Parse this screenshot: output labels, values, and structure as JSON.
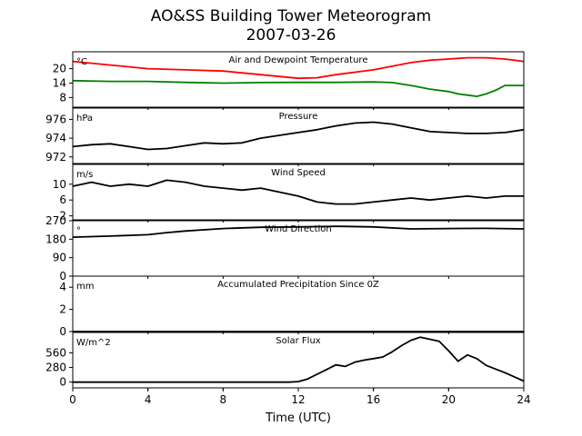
{
  "header": {
    "title": "AO&SS Building Tower Meteorogram",
    "date": "2007-03-26"
  },
  "chart_data": [
    {
      "type": "line",
      "title": "Air and Dewpoint Temperature",
      "unit": "°C",
      "ylim": [
        4,
        27
      ],
      "yticks": [
        "8",
        "14",
        "20"
      ],
      "ytick_values": [
        8,
        14,
        20
      ],
      "series": [
        {
          "color": "#ff0000",
          "x": [
            0,
            2,
            4,
            6,
            8,
            10,
            12,
            13,
            14,
            16,
            17,
            18,
            19,
            20,
            21,
            22,
            23,
            24
          ],
          "values": [
            23,
            21.5,
            20,
            19.5,
            19,
            17.5,
            16,
            16.2,
            17.5,
            19.5,
            21,
            22.5,
            23.5,
            24,
            24.5,
            24.5,
            24,
            23
          ]
        },
        {
          "color": "#008000",
          "x": [
            0,
            2,
            4,
            6,
            8,
            10,
            12,
            14,
            16,
            17,
            18,
            19,
            20,
            20.5,
            21,
            21.5,
            22,
            22.5,
            23,
            24
          ],
          "values": [
            15,
            14.7,
            14.7,
            14.3,
            14,
            14.2,
            14.3,
            14.3,
            14.5,
            14.2,
            13,
            11.5,
            10.5,
            9.5,
            9,
            8.5,
            9.5,
            11,
            13,
            13
          ]
        }
      ]
    },
    {
      "type": "line",
      "title": "Pressure",
      "unit": "hPa",
      "ylim": [
        971.3,
        977.2
      ],
      "yticks": [
        "972",
        "974",
        "976"
      ],
      "ytick_values": [
        972,
        974,
        976
      ],
      "series": [
        {
          "color": "#000000",
          "x": [
            0,
            1,
            2,
            3,
            4,
            5,
            6,
            7,
            8,
            9,
            10,
            11,
            12,
            13,
            14,
            15,
            16,
            17,
            18,
            19,
            20,
            21,
            22,
            23,
            24
          ],
          "values": [
            973.1,
            973.3,
            973.4,
            973.1,
            972.8,
            972.9,
            973.2,
            973.5,
            973.4,
            973.5,
            974,
            974.3,
            974.6,
            974.9,
            975.3,
            975.6,
            975.7,
            975.5,
            975.1,
            974.7,
            974.6,
            974.5,
            974.5,
            974.6,
            974.9
          ]
        }
      ]
    },
    {
      "type": "line",
      "title": "Wind Speed",
      "unit": "m/s",
      "ylim": [
        1,
        15
      ],
      "yticks": [
        "2",
        "6",
        "10"
      ],
      "ytick_values": [
        2,
        6,
        10
      ],
      "series": [
        {
          "color": "#000000",
          "x": [
            0,
            1,
            2,
            3,
            4,
            5,
            6,
            7,
            8,
            9,
            10,
            11,
            12,
            13,
            14,
            15,
            16,
            17,
            18,
            19,
            20,
            21,
            22,
            23,
            24
          ],
          "values": [
            9.5,
            10.5,
            9.5,
            10,
            9.5,
            11,
            10.5,
            9.5,
            9,
            8.5,
            9,
            8,
            7,
            5.5,
            5,
            5,
            5.5,
            6,
            6.5,
            6,
            6.5,
            7,
            6.5,
            7,
            7
          ]
        }
      ]
    },
    {
      "type": "line",
      "title": "Wind Direction",
      "unit": "°",
      "ylim": [
        0,
        270
      ],
      "yticks": [
        "0",
        "90",
        "180",
        "270"
      ],
      "ytick_values": [
        0,
        90,
        180,
        270
      ],
      "series": [
        {
          "color": "#000000",
          "x": [
            0,
            2,
            4,
            5,
            6,
            8,
            10,
            12,
            14,
            16,
            18,
            20,
            22,
            24
          ],
          "values": [
            190,
            195,
            202,
            212,
            220,
            232,
            238,
            240,
            243,
            240,
            230,
            232,
            233,
            230
          ]
        }
      ]
    },
    {
      "type": "line",
      "title": "Accumulated Precipitation Since 0Z",
      "unit": "mm",
      "ylim": [
        0,
        5
      ],
      "yticks": [
        "0",
        "2",
        "4"
      ],
      "ytick_values": [
        0,
        2,
        4
      ],
      "series": [
        {
          "color": "#000000",
          "x": [
            0,
            24
          ],
          "values": [
            0,
            0
          ]
        }
      ]
    },
    {
      "type": "line",
      "title": "Solar Flux",
      "unit": "W/m^2",
      "ylim": [
        -110,
        950
      ],
      "yticks": [
        "0",
        "280",
        "560"
      ],
      "ytick_values": [
        0,
        280,
        560
      ],
      "series": [
        {
          "color": "#000000",
          "x": [
            0,
            11.5,
            12,
            12.5,
            13,
            13.5,
            14,
            14.5,
            15,
            15.5,
            16,
            16.5,
            17,
            17.5,
            18,
            18.5,
            19,
            19.5,
            20,
            20.5,
            21,
            21.5,
            22,
            22.5,
            23,
            23.5,
            24
          ],
          "values": [
            0,
            0,
            10,
            60,
            150,
            240,
            330,
            300,
            380,
            420,
            450,
            480,
            580,
            700,
            800,
            860,
            820,
            780,
            600,
            400,
            520,
            450,
            320,
            250,
            180,
            100,
            20
          ]
        }
      ]
    }
  ],
  "x_axis": {
    "label": "Time (UTC)",
    "xlim": [
      0,
      24
    ],
    "ticks": [
      "0",
      "4",
      "8",
      "12",
      "16",
      "20",
      "24"
    ],
    "tick_values": [
      0,
      4,
      8,
      12,
      16,
      20,
      24
    ]
  }
}
